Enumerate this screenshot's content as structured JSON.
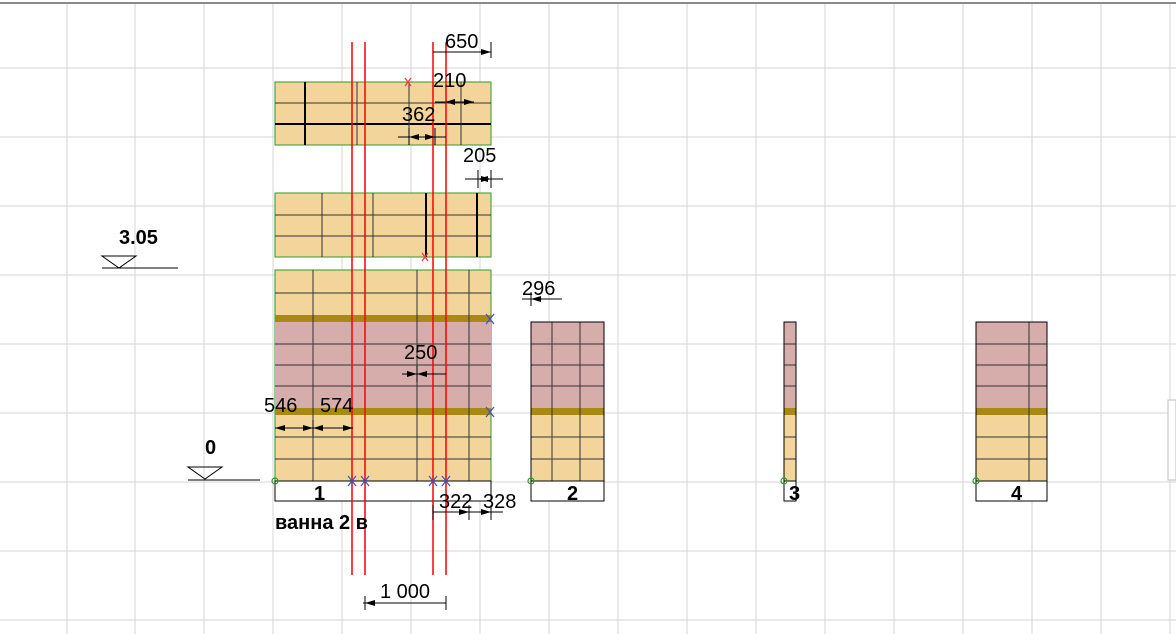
{
  "levels": {
    "upper": "3.05",
    "lower": "0"
  },
  "dimensions": {
    "d650": "650",
    "d210": "210",
    "d362": "362",
    "d205": "205",
    "d296": "296",
    "d250": "250",
    "d546": "546",
    "d574": "574",
    "d322": "322",
    "d328": "328",
    "d1000": "1 000"
  },
  "walls": [
    {
      "label": "1"
    },
    {
      "label": "2"
    },
    {
      "label": "3"
    },
    {
      "label": "4"
    }
  ],
  "room_name": "ванна 2 в",
  "colors": {
    "tile_beige": "#f3d59b",
    "tile_pink": "#d7adab",
    "accent_stripe": "#a88a12",
    "guide_red": "#ff0000",
    "grid": "#d6d6d6",
    "frame_green": "#2a9a2a"
  }
}
